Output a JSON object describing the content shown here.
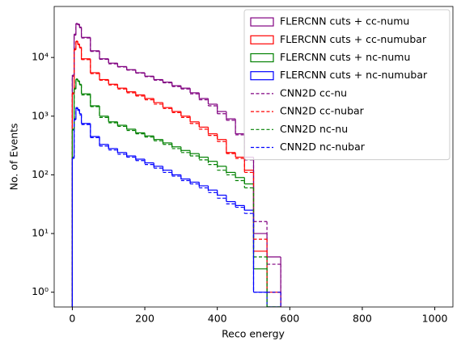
{
  "chart_data": {
    "type": "histogram",
    "xlabel": "Reco energy",
    "ylabel": "No. of Events",
    "log_y": true,
    "legend": "upper right",
    "bins": [
      0,
      5,
      10,
      15,
      20,
      25,
      50,
      75,
      100,
      125,
      150,
      175,
      200,
      225,
      250,
      275,
      300,
      325,
      350,
      375,
      400,
      425,
      450,
      475,
      500,
      537,
      575
    ],
    "xlim": [
      -50,
      1050
    ],
    "xticks": [
      0,
      200,
      400,
      600,
      800,
      1000
    ],
    "ylim": [
      0.56,
      74000
    ],
    "yticks": [
      {
        "value": 1,
        "label": "10⁰"
      },
      {
        "value": 10,
        "label": "10¹"
      },
      {
        "value": 100,
        "label": "10²"
      },
      {
        "value": 1000,
        "label": "10³"
      },
      {
        "value": 10000,
        "label": "10⁴"
      }
    ],
    "series": [
      {
        "name": "FLERCNN cuts + cc-numu",
        "color": "#800080",
        "linestyle": "solid",
        "values": [
          5000,
          25000,
          38000,
          37000,
          33000,
          22000,
          13000,
          9500,
          8000,
          7000,
          6200,
          5500,
          4800,
          4200,
          3800,
          3300,
          3000,
          2500,
          2000,
          1600,
          1200,
          900,
          500,
          200,
          10,
          4
        ]
      },
      {
        "name": "FLERCNN cuts + cc-numubar",
        "color": "#ff0000",
        "linestyle": "solid",
        "values": [
          2500,
          14000,
          19000,
          17000,
          15000,
          9500,
          5500,
          4200,
          3500,
          3000,
          2600,
          2300,
          2000,
          1700,
          1400,
          1200,
          1000,
          800,
          650,
          500,
          400,
          240,
          200,
          120,
          5,
          1
        ]
      },
      {
        "name": "FLERCNN cuts + nc-numu",
        "color": "#008000",
        "linestyle": "solid",
        "values": [
          600,
          3000,
          4300,
          4000,
          3500,
          2400,
          1500,
          1000,
          800,
          700,
          600,
          520,
          460,
          400,
          350,
          300,
          260,
          230,
          200,
          170,
          140,
          110,
          90,
          70,
          2.5,
          0
        ]
      },
      {
        "name": "FLERCNN cuts + nc-numubar",
        "color": "#0000ff",
        "linestyle": "solid",
        "values": [
          200,
          900,
          1400,
          1300,
          1100,
          750,
          450,
          330,
          280,
          240,
          210,
          185,
          160,
          140,
          120,
          100,
          85,
          75,
          65,
          55,
          45,
          35,
          30,
          25,
          1,
          0
        ]
      },
      {
        "name": "CNN2D cc-nu",
        "color": "#800080",
        "linestyle": "dashed",
        "values": [
          4800,
          24000,
          37000,
          36000,
          32000,
          21500,
          12700,
          9300,
          7800,
          6900,
          6100,
          5400,
          4700,
          4100,
          3700,
          3200,
          2900,
          2400,
          1900,
          1500,
          1100,
          850,
          480,
          180,
          16,
          3
        ]
      },
      {
        "name": "CNN2D cc-nubar",
        "color": "#ff0000",
        "linestyle": "dashed",
        "values": [
          2400,
          13500,
          18500,
          16500,
          14500,
          9200,
          5300,
          4100,
          3400,
          2900,
          2500,
          2200,
          1900,
          1600,
          1350,
          1150,
          950,
          750,
          600,
          470,
          370,
          230,
          190,
          110,
          8,
          1
        ]
      },
      {
        "name": "CNN2D nc-nu",
        "color": "#008000",
        "linestyle": "dashed",
        "values": [
          580,
          2900,
          4200,
          3900,
          3400,
          2300,
          1450,
          950,
          770,
          670,
          570,
          500,
          440,
          380,
          330,
          280,
          240,
          210,
          180,
          150,
          120,
          100,
          80,
          60,
          4,
          0
        ]
      },
      {
        "name": "CNN2D nc-nubar",
        "color": "#0000ff",
        "linestyle": "dashed",
        "values": [
          190,
          870,
          1350,
          1250,
          1050,
          720,
          430,
          310,
          265,
          225,
          200,
          175,
          150,
          130,
          110,
          95,
          80,
          70,
          60,
          50,
          40,
          32,
          28,
          22,
          1,
          1
        ]
      }
    ]
  }
}
